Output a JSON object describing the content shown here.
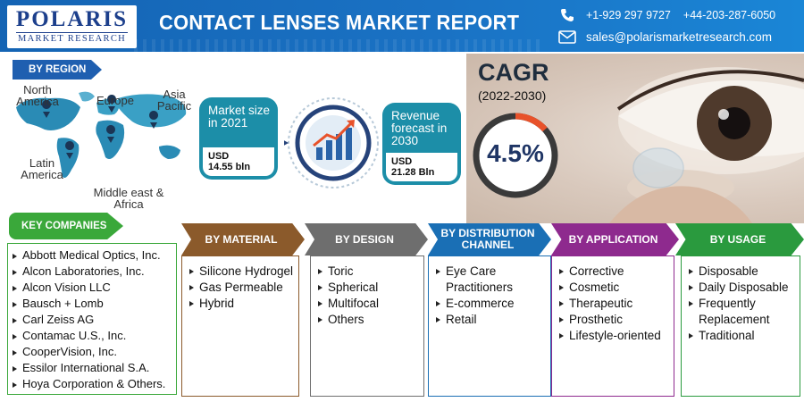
{
  "header": {
    "logo_main": "POLARIS",
    "logo_sub": "MARKET RESEARCH",
    "title": "CONTACT LENSES MARKET REPORT",
    "phone_1": "+1-929 297 9727",
    "phone_2": "+44-203-287-6050",
    "email": "sales@polarismarketresearch.com",
    "icons": [
      "phone-icon",
      "mail-icon"
    ]
  },
  "region": {
    "badge": "BY REGION",
    "labels": {
      "north_america": "North America",
      "europe": "Europe",
      "asia_pacific": "Asia Pacific",
      "latin_america": "Latin America",
      "middle_east_africa": "Middle east & Africa"
    }
  },
  "market": {
    "size_label": "Market size in 2021",
    "size_value_unit": "USD",
    "size_value": "14.55 bln",
    "forecast_label": "Revenue forecast in 2030",
    "forecast_value_unit": "USD",
    "forecast_value": "21.28 Bln"
  },
  "cagr": {
    "title": "CAGR",
    "period": "(2022-2030)",
    "value": "4.5%",
    "gauge_fill": 0.045
  },
  "companies": {
    "badge": "KEY COMPANIES",
    "items": [
      "Abbott Medical Optics, Inc.",
      "Alcon Laboratories, Inc.",
      "Alcon Vision LLC",
      "Bausch + Lomb",
      "Carl Zeiss AG",
      "Contamac U.S., Inc.",
      "CooperVision, Inc.",
      "Essilor International S.A.",
      "Hoya Corporation & Others."
    ]
  },
  "segments": [
    {
      "title": "BY MATERIAL",
      "color": "#8b5a2b",
      "items": [
        "Silicone Hydrogel",
        "Gas Permeable",
        "Hybrid"
      ]
    },
    {
      "title": "BY DESIGN",
      "color": "#6e6e6e",
      "items": [
        "Toric",
        "Spherical",
        "Multifocal",
        "Others"
      ]
    },
    {
      "title": "BY DISTRIBUTION CHANNEL",
      "color": "#1a6fb5",
      "items": [
        "Eye Care Practitioners",
        "E-commerce",
        "Retail"
      ]
    },
    {
      "title": "BY APPLICATION",
      "color": "#8e2a8e",
      "items": [
        "Corrective",
        "Cosmetic",
        "Therapeutic",
        "Prosthetic",
        "Lifestyle-oriented"
      ]
    },
    {
      "title": "BY USAGE",
      "color": "#2a9a3e",
      "items": [
        "Disposable",
        "Daily Disposable",
        "Frequently Replacement",
        "Traditional"
      ]
    }
  ]
}
